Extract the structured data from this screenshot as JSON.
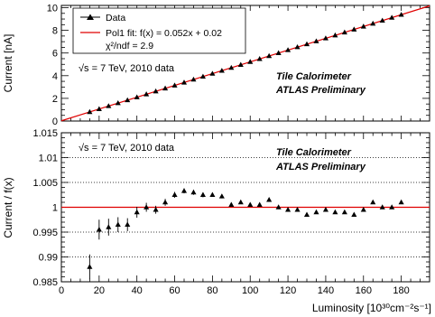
{
  "chart_data": [
    {
      "type": "scatter",
      "panel": "top",
      "ylabel": "Current [nA]",
      "xlim": [
        0,
        195
      ],
      "ylim": [
        0,
        10.2
      ],
      "x_ticks": [
        0,
        20,
        40,
        60,
        80,
        100,
        120,
        140,
        160,
        180
      ],
      "y_ticks": [
        0,
        2,
        4,
        6,
        8,
        10
      ],
      "y_tick_labels": [
        "0",
        "2",
        "4",
        "6",
        "8",
        "10"
      ],
      "grid": false,
      "legend_position": "top-left",
      "series": [
        {
          "name": "Data",
          "marker": "triangle",
          "color": "#000000",
          "x": [
            15,
            20,
            25,
            30,
            35,
            40,
            45,
            50,
            55,
            60,
            65,
            70,
            75,
            80,
            85,
            90,
            95,
            100,
            105,
            110,
            115,
            120,
            125,
            130,
            135,
            140,
            145,
            150,
            155,
            160,
            165,
            170,
            175,
            180
          ],
          "y": [
            0.8,
            1.06,
            1.32,
            1.58,
            1.84,
            2.1,
            2.36,
            2.62,
            2.88,
            3.14,
            3.4,
            3.66,
            3.92,
            4.18,
            4.44,
            4.7,
            4.96,
            5.22,
            5.48,
            5.74,
            6.0,
            6.26,
            6.52,
            6.78,
            7.04,
            7.3,
            7.56,
            7.82,
            8.08,
            8.34,
            8.6,
            8.86,
            9.12,
            9.38
          ]
        },
        {
          "name": "Pol1 fit: f(x) = 0.052x + 0.02",
          "type": "line",
          "color": "#e00000",
          "slope": 0.052,
          "intercept": 0.02,
          "x_range": [
            0,
            195
          ]
        }
      ],
      "legend_extra": "χ²/ndf = 2.9",
      "annotations": {
        "energy": "√s = 7 TeV, 2010 data",
        "detector": "Tile Calorimeter",
        "status": "ATLAS Preliminary"
      }
    },
    {
      "type": "scatter",
      "panel": "bottom",
      "xlabel": "Luminosity [10³⁰cm⁻²s⁻¹]",
      "ylabel": "Current / f(x)",
      "xlim": [
        0,
        195
      ],
      "ylim": [
        0.985,
        1.015
      ],
      "x_ticks": [
        0,
        20,
        40,
        60,
        80,
        100,
        120,
        140,
        160,
        180
      ],
      "x_tick_labels": [
        "0",
        "20",
        "40",
        "60",
        "80",
        "100",
        "120",
        "140",
        "160",
        "180"
      ],
      "y_ticks": [
        0.985,
        0.99,
        0.995,
        1.0,
        1.005,
        1.01,
        1.015
      ],
      "y_tick_labels": [
        "0.985",
        "0.99",
        "0.995",
        "1",
        "1.005",
        "1.01",
        "1.015"
      ],
      "grid": "horizontal dotted",
      "reference_line": {
        "y": 1.0,
        "color": "#e00000"
      },
      "series": [
        {
          "name": "Data",
          "marker": "triangle",
          "color": "#000000",
          "x": [
            15,
            20,
            25,
            30,
            35,
            40,
            45,
            50,
            55,
            60,
            65,
            70,
            75,
            80,
            85,
            90,
            95,
            100,
            105,
            110,
            115,
            120,
            125,
            130,
            135,
            140,
            145,
            150,
            155,
            160,
            165,
            170,
            175,
            180
          ],
          "y": [
            0.988,
            0.9955,
            0.996,
            0.9965,
            0.9965,
            0.999,
            1.0,
            0.9995,
            1.001,
            1.0025,
            1.0033,
            1.003,
            1.0025,
            1.0025,
            1.0022,
            1.0005,
            1.001,
            1.0005,
            1.0005,
            1.0015,
            1.0,
            0.9995,
            0.9995,
            0.9985,
            0.999,
            0.9995,
            0.999,
            0.999,
            0.9985,
            0.9995,
            1.001,
            1.0,
            1.0,
            1.001
          ],
          "err": [
            0.0025,
            0.002,
            0.0017,
            0.0015,
            0.0013,
            0.0011,
            0.0009,
            0.0008,
            0.0007,
            0.0006,
            0.0005,
            0.0005,
            0.0005,
            0.0004,
            0.0004,
            0.0004,
            0.0003,
            0.0003,
            0.0003,
            0.0003,
            0.0003,
            0.0003,
            0.0003,
            0.0003,
            0.0003,
            0.0003,
            0.0003,
            0.0003,
            0.0003,
            0.0003,
            0.0003,
            0.0003,
            0.0003,
            0.0003
          ]
        }
      ],
      "annotations": {
        "energy": "√s = 7 TeV, 2010 data",
        "detector": "Tile Calorimeter",
        "status": "ATLAS Preliminary"
      }
    }
  ]
}
